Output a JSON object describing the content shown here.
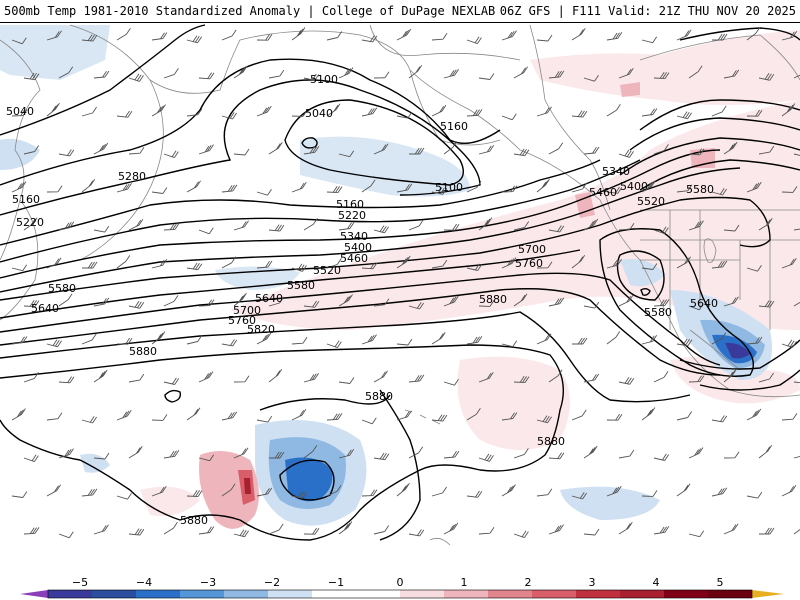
{
  "header": {
    "left": "500mb Temp 1981-2010 Standardized Anomaly | College of DuPage NEXLAB",
    "right": "06Z GFS | F111 Valid: 21Z THU NOV 20 2025"
  },
  "colors": {
    "contour": "#000000",
    "coast": "#888888",
    "wind_barb": "#555555",
    "anom_neg_strong": "#3a3a9c",
    "anom_neg_med": "#2b70c8",
    "anom_neg_light": "#8fb9e3",
    "anom_neg_faint": "#cfe0f2",
    "anom_pos_faint": "#f7dde0",
    "anom_pos_light": "#eeb6bc",
    "anom_pos_med": "#d85e6a",
    "anom_pos_strong": "#a82030"
  },
  "contour_labels": [
    {
      "text": "5040"
    },
    {
      "text": "5160"
    },
    {
      "text": "5220"
    },
    {
      "text": "5280"
    },
    {
      "text": "5100"
    },
    {
      "text": "5040"
    },
    {
      "text": "5160"
    },
    {
      "text": "5100"
    },
    {
      "text": "5160"
    },
    {
      "text": "5220"
    },
    {
      "text": "5340"
    },
    {
      "text": "5400"
    },
    {
      "text": "5460"
    },
    {
      "text": "5520"
    },
    {
      "text": "5580"
    },
    {
      "text": "5640"
    },
    {
      "text": "5580"
    },
    {
      "text": "5640"
    },
    {
      "text": "5700"
    },
    {
      "text": "5760"
    },
    {
      "text": "5820"
    },
    {
      "text": "5880"
    },
    {
      "text": "5880"
    },
    {
      "text": "5880"
    },
    {
      "text": "5880"
    },
    {
      "text": "5880"
    },
    {
      "text": "5700"
    },
    {
      "text": "5760"
    },
    {
      "text": "5340"
    },
    {
      "text": "5400"
    },
    {
      "text": "5460"
    },
    {
      "text": "5520"
    },
    {
      "text": "5580"
    },
    {
      "text": "5580"
    },
    {
      "text": "5640"
    }
  ],
  "colorbar": {
    "ticks": [
      "−5",
      "−4",
      "−3",
      "−2",
      "−1",
      "0",
      "1",
      "2",
      "3",
      "4",
      "5"
    ]
  }
}
